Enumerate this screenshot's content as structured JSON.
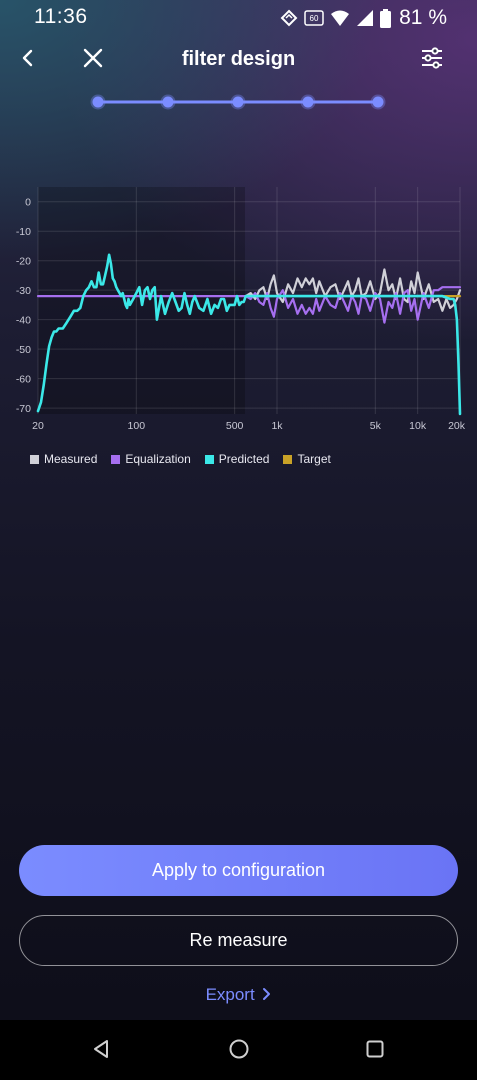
{
  "status_bar": {
    "time": "11:36",
    "battery_percent": "81 %",
    "icons": [
      "data-sync-icon",
      "hd-voice-icon",
      "wifi-icon",
      "signal-icon",
      "battery-icon"
    ]
  },
  "header": {
    "title": "filter design",
    "back_icon": "chevron-left-icon",
    "close_icon": "close-icon",
    "settings_icon": "sliders-icon"
  },
  "stepper": {
    "steps": 5,
    "current": 5
  },
  "chart_data": {
    "type": "line",
    "xscale": "log",
    "xlim": [
      20,
      20000
    ],
    "ylim": [
      -72,
      5
    ],
    "xticks": [
      {
        "value": 20,
        "label": "20"
      },
      {
        "value": 100,
        "label": "100"
      },
      {
        "value": 500,
        "label": "500"
      },
      {
        "value": 1000,
        "label": "1k"
      },
      {
        "value": 5000,
        "label": "5k"
      },
      {
        "value": 10000,
        "label": "10k"
      },
      {
        "value": 20000,
        "label": "20k"
      }
    ],
    "yticks": [
      0,
      -10,
      -20,
      -30,
      -40,
      -50,
      -60,
      -70
    ],
    "grid": true,
    "series": [
      {
        "name": "Measured",
        "color": "#d0d0d8",
        "x": [
          600,
          650,
          700,
          750,
          800,
          850,
          900,
          950,
          1000,
          1100,
          1200,
          1300,
          1400,
          1500,
          1600,
          1700,
          1800,
          1900,
          2000,
          2200,
          2400,
          2600,
          2800,
          3000,
          3200,
          3400,
          3600,
          3800,
          4000,
          4300,
          4600,
          5000,
          5400,
          5800,
          6200,
          6600,
          7000,
          7500,
          8000,
          8500,
          9000,
          9500,
          10000,
          11000,
          12000,
          13000,
          14000,
          15000,
          16000,
          17000,
          18000,
          19000,
          20000
        ],
        "values": [
          -32,
          -31,
          -33,
          -30,
          -29,
          -33,
          -28,
          -25,
          -31,
          -34,
          -28,
          -31,
          -26,
          -29,
          -26,
          -28,
          -26,
          -31,
          -27,
          -32,
          -29,
          -28,
          -33,
          -30,
          -27,
          -32,
          -30,
          -26,
          -32,
          -31,
          -27,
          -33,
          -31,
          -23,
          -30,
          -28,
          -33,
          -26,
          -33,
          -34,
          -27,
          -31,
          -24,
          -33,
          -28,
          -34,
          -33,
          -37,
          -33,
          -36,
          -35,
          -33,
          -30
        ]
      },
      {
        "name": "Equalization",
        "color": "#a66ff0",
        "x": [
          20,
          200,
          500,
          600,
          650,
          700,
          750,
          800,
          850,
          900,
          950,
          1000,
          1100,
          1200,
          1300,
          1400,
          1500,
          1600,
          1700,
          1800,
          1900,
          2000,
          2200,
          2400,
          2600,
          2800,
          3000,
          3200,
          3400,
          3600,
          3800,
          4000,
          4300,
          4600,
          5000,
          5400,
          5800,
          6200,
          6600,
          7000,
          7500,
          8000,
          8500,
          9000,
          9500,
          10000,
          11000,
          12000,
          13000,
          14000,
          15000,
          16000,
          17000,
          18000,
          19000,
          20000
        ],
        "values": [
          -32,
          -32,
          -32,
          -32,
          -33,
          -31,
          -34,
          -35,
          -31,
          -36,
          -39,
          -33,
          -30,
          -36,
          -33,
          -38,
          -35,
          -38,
          -36,
          -38,
          -33,
          -37,
          -32,
          -35,
          -36,
          -31,
          -34,
          -37,
          -32,
          -34,
          -38,
          -32,
          -33,
          -37,
          -31,
          -33,
          -41,
          -34,
          -36,
          -31,
          -38,
          -31,
          -30,
          -37,
          -33,
          -40,
          -31,
          -36,
          -30,
          -30,
          -29,
          -29,
          -29,
          -29,
          -29,
          -29
        ]
      },
      {
        "name": "Predicted",
        "color": "#3be8e8",
        "x": [
          20,
          21,
          22,
          23,
          24,
          25,
          26,
          27,
          28,
          30,
          32,
          34,
          36,
          38,
          40,
          42,
          44,
          46,
          48,
          50,
          52,
          54,
          56,
          58,
          60,
          62,
          64,
          66,
          68,
          70,
          72,
          74,
          76,
          78,
          80,
          82,
          84,
          86,
          88,
          90,
          95,
          100,
          105,
          110,
          115,
          120,
          125,
          130,
          135,
          140,
          150,
          160,
          170,
          180,
          190,
          200,
          210,
          220,
          230,
          240,
          250,
          260,
          280,
          300,
          320,
          340,
          360,
          380,
          400,
          420,
          440,
          460,
          480,
          500,
          520,
          540,
          560,
          580,
          600,
          700,
          1000,
          2000,
          5000,
          10000,
          15000,
          17000,
          18000,
          18500,
          19000,
          19500,
          20000
        ],
        "values": [
          -71,
          -68,
          -62,
          -55,
          -49,
          -46,
          -44,
          -44,
          -43,
          -43,
          -41,
          -39,
          -37,
          -37,
          -36,
          -32,
          -30,
          -29,
          -27,
          -29,
          -29,
          -24,
          -28,
          -28,
          -25,
          -22,
          -18,
          -21,
          -26,
          -27,
          -29,
          -30,
          -31,
          -32,
          -31,
          -33,
          -35,
          -36,
          -33,
          -35,
          -33,
          -31,
          -29,
          -35,
          -30,
          -29,
          -33,
          -30,
          -29,
          -40,
          -32,
          -38,
          -34,
          -31,
          -34,
          -37,
          -36,
          -31,
          -35,
          -38,
          -34,
          -32,
          -36,
          -37,
          -33,
          -38,
          -35,
          -36,
          -33,
          -33,
          -37,
          -35,
          -35,
          -35,
          -32,
          -35,
          -34,
          -34,
          -32,
          -32,
          -32,
          -32,
          -32,
          -32,
          -32,
          -33,
          -33,
          -35,
          -40,
          -55,
          -72
        ]
      },
      {
        "name": "Target",
        "color": "#c9a227",
        "x": [
          14000,
          20000
        ],
        "values": [
          -32,
          -32
        ]
      }
    ]
  },
  "actions": {
    "apply_label": "Apply to configuration",
    "remeasure_label": "Re measure",
    "export_label": "Export"
  },
  "nav_bar": {
    "back_icon": "nav-back-icon",
    "home_icon": "nav-home-icon",
    "recents_icon": "nav-recents-icon"
  }
}
